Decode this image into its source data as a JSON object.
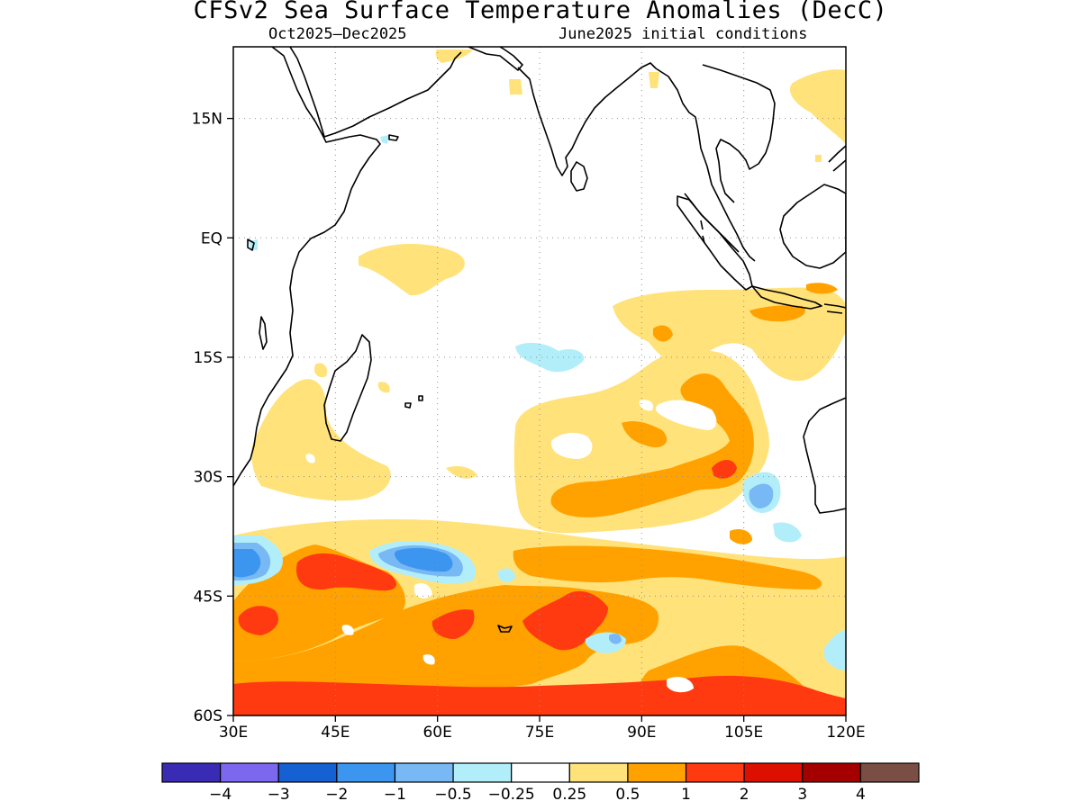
{
  "title": "CFSv2 Sea Surface Temperature Anomalies (DecC)",
  "subtitle_left": "Oct2025—Dec2025",
  "subtitle_right": "June2025 initial conditions",
  "map": {
    "lon_range": [
      30,
      120
    ],
    "lat_range": [
      -60,
      24
    ],
    "lon_ticks": [
      {
        "value": 30,
        "label": "30E"
      },
      {
        "value": 45,
        "label": "45E"
      },
      {
        "value": 60,
        "label": "60E"
      },
      {
        "value": 75,
        "label": "75E"
      },
      {
        "value": 90,
        "label": "90E"
      },
      {
        "value": 105,
        "label": "105E"
      },
      {
        "value": 120,
        "label": "120E"
      }
    ],
    "lat_ticks": [
      {
        "value": 15,
        "label": "15N"
      },
      {
        "value": 0,
        "label": "EQ"
      },
      {
        "value": -15,
        "label": "15S"
      },
      {
        "value": -30,
        "label": "30S"
      },
      {
        "value": -45,
        "label": "45S"
      },
      {
        "value": -60,
        "label": "60S"
      }
    ],
    "grid": "dotted"
  },
  "colorbar": {
    "colors": [
      "#3a2bb5",
      "#7b68ee",
      "#1560d2",
      "#3c96f0",
      "#78b8f5",
      "#b2eefa",
      "#ffffff",
      "#ffe27a",
      "#ffa200",
      "#ff3a10",
      "#dd1000",
      "#a50000",
      "#7a4e45"
    ],
    "labels": [
      "−4",
      "−3",
      "−2",
      "−1",
      "−0.5",
      "−0.25",
      "0.25",
      "0.5",
      "1",
      "2",
      "3",
      "4"
    ]
  }
}
